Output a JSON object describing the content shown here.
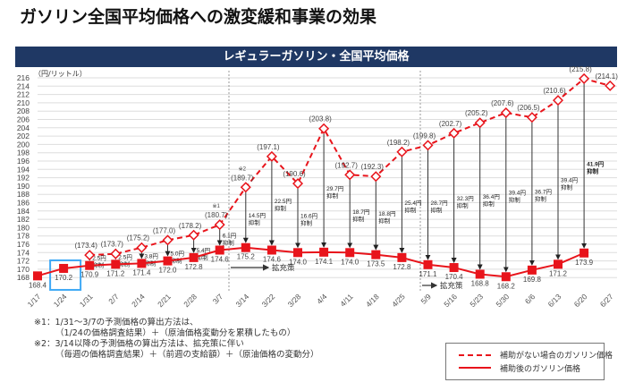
{
  "title": "ガソリン全国平均価格への激変緩和事業の効果",
  "chart_data": {
    "type": "line",
    "title": "レギュラーガソリン・全国平均価格",
    "ylabel": "（円/リットル）",
    "ylim": [
      168,
      216
    ],
    "yticks": [
      168,
      170,
      172,
      174,
      176,
      178,
      180,
      182,
      184,
      186,
      188,
      190,
      192,
      194,
      196,
      198,
      200,
      202,
      204,
      206,
      208,
      210,
      212,
      214,
      216
    ],
    "categories": [
      "1/17",
      "1/24",
      "1/31",
      "2/7",
      "2/14",
      "2/21",
      "2/28",
      "3/7",
      "3/14",
      "3/22",
      "3/28",
      "4/4",
      "4/11",
      "4/18",
      "4/25",
      "5/9",
      "5/16",
      "5/23",
      "5/30",
      "6/6",
      "6/13",
      "6/20",
      "6/27"
    ],
    "series": [
      {
        "name": "補助がない場合のガソリン価格",
        "style": "dashed",
        "color": "#e8141b",
        "values": [
          null,
          null,
          173.4,
          173.7,
          175.2,
          177.0,
          178.2,
          180.7,
          189.7,
          197.1,
          190.6,
          203.8,
          192.7,
          192.3,
          198.2,
          199.8,
          202.7,
          205.2,
          207.6,
          206.5,
          210.6,
          215.8,
          214.1
        ]
      },
      {
        "name": "補助後のガソリン価格",
        "style": "solid",
        "color": "#e8141b",
        "values": [
          168.4,
          170.2,
          170.9,
          171.2,
          171.4,
          172.0,
          172.8,
          174.6,
          175.2,
          174.6,
          174.0,
          174.1,
          174.0,
          173.5,
          172.8,
          171.1,
          170.4,
          168.8,
          168.2,
          169.8,
          171.2,
          173.9,
          null
        ]
      }
    ],
    "suppression": [
      "",
      "",
      "2.5円",
      "2.5円",
      "3.8円",
      "5.0円",
      "5.4円",
      "6.1円",
      "14.5円",
      "22.5円",
      "16.6円",
      "29.7円",
      "18.7円",
      "18.8円",
      "25.4円",
      "28.7円",
      "32.3円",
      "36.4円",
      "39.4円",
      "36.7円",
      "39.4円",
      "41.9円",
      ""
    ],
    "suppression_suffix": "抑制",
    "notes_marks": {
      "8": "※2",
      "7": "※1"
    },
    "policy_label": "拡充策",
    "highlight_index": 1
  },
  "footnotes": [
    "※1：1/31～3/7の予測価格の算出方法は、",
    "（1/24の価格調査結果）＋（原油価格変動分を累積したもの）",
    "※2：3/14以降の予測価格の算出方法は、拡充策に伴い",
    "（毎週の価格調査結果）＋（前週の支給額）＋（原油価格の変動分）"
  ]
}
